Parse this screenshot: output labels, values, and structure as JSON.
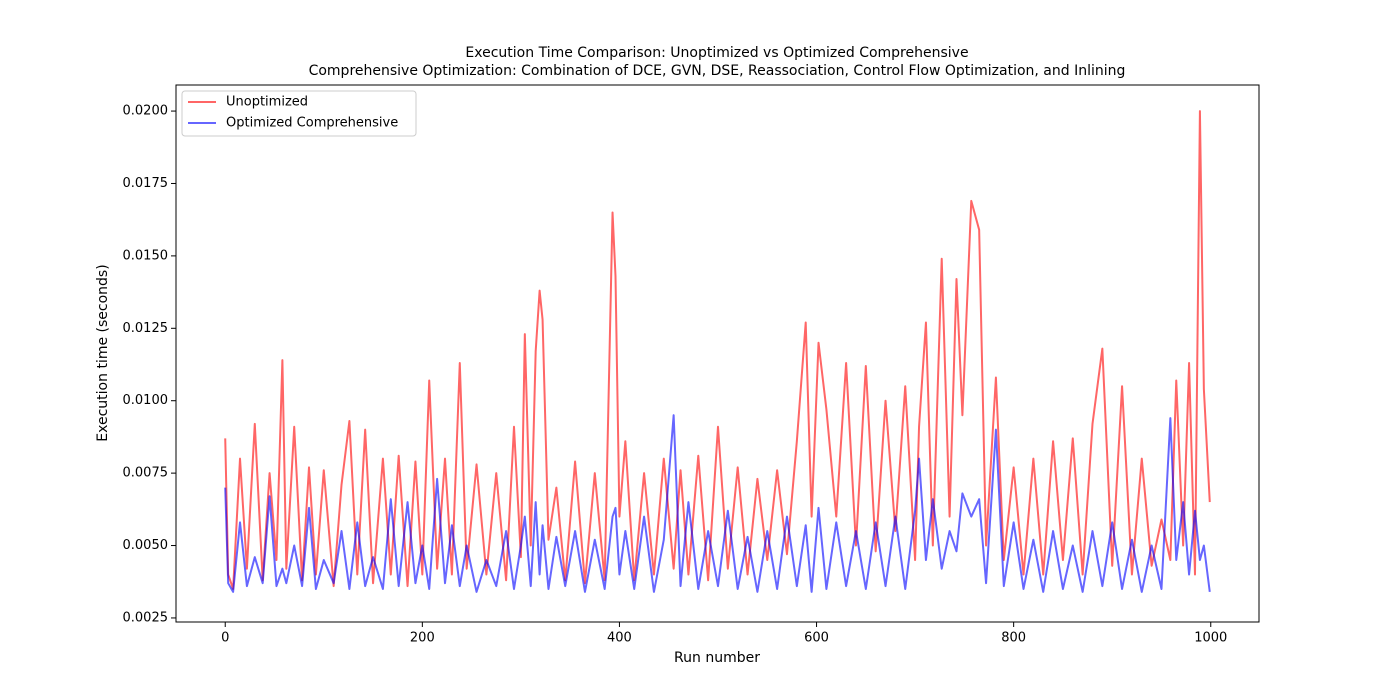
{
  "chart_data": {
    "type": "line",
    "title": "Execution Time Comparison: Unoptimized vs Optimized Comprehensive",
    "subtitle": "Comprehensive Optimization: Combination of DCE, GVN, DSE, Reassociation, Control Flow Optimization, and Inlining",
    "xlabel": "Run number",
    "ylabel": "Execution time (seconds)",
    "xlim": [
      -49.95,
      1048.95
    ],
    "xticks": [
      0,
      200,
      400,
      600,
      800,
      1000
    ],
    "ylim": [
      0.00236,
      0.0209
    ],
    "yticks": [
      0.0025,
      {
        "value": 0.005,
        "label": "0.0050"
      },
      0.0075,
      {
        "value": 0.01,
        "label": "0.0100"
      },
      0.0125,
      {
        "value": 0.015,
        "label": "0.0150"
      },
      0.0175,
      {
        "value": 0.02,
        "label": "0.0200"
      }
    ],
    "legend": "upper left",
    "x": [
      0,
      3,
      8,
      15,
      22,
      30,
      38,
      45,
      52,
      58,
      62,
      70,
      78,
      85,
      92,
      100,
      110,
      118,
      126,
      134,
      142,
      150,
      160,
      168,
      176,
      185,
      193,
      200,
      207,
      215,
      223,
      230,
      238,
      245,
      255,
      265,
      275,
      285,
      293,
      300,
      304,
      310,
      315,
      319,
      322,
      328,
      336,
      345,
      355,
      365,
      375,
      385,
      393,
      396,
      400,
      406,
      415,
      425,
      435,
      445,
      455,
      462,
      470,
      480,
      490,
      500,
      510,
      520,
      530,
      540,
      550,
      560,
      570,
      580,
      589,
      595,
      602,
      610,
      620,
      630,
      640,
      650,
      660,
      670,
      680,
      690,
      700,
      704,
      711,
      718,
      727,
      735,
      742,
      748,
      757,
      765,
      772,
      782,
      790,
      800,
      810,
      820,
      830,
      840,
      850,
      860,
      870,
      880,
      890,
      900,
      910,
      920,
      930,
      940,
      950,
      959,
      965,
      972,
      978,
      984,
      989,
      993,
      999
    ],
    "series": [
      {
        "name": "Unoptimized",
        "color": "#ff0000",
        "values": [
          0.0087,
          0.004,
          0.0035,
          0.008,
          0.0042,
          0.0092,
          0.0038,
          0.0075,
          0.0045,
          0.0114,
          0.0042,
          0.0091,
          0.0038,
          0.0077,
          0.004,
          0.0076,
          0.0036,
          0.0071,
          0.0093,
          0.004,
          0.009,
          0.0037,
          0.008,
          0.004,
          0.0081,
          0.0036,
          0.0079,
          0.004,
          0.0107,
          0.0042,
          0.008,
          0.004,
          0.0113,
          0.0042,
          0.0078,
          0.004,
          0.0075,
          0.0038,
          0.0091,
          0.0046,
          0.0123,
          0.005,
          0.0117,
          0.0138,
          0.0128,
          0.0052,
          0.007,
          0.0038,
          0.0079,
          0.0037,
          0.0075,
          0.0038,
          0.0165,
          0.0143,
          0.006,
          0.0086,
          0.0038,
          0.0075,
          0.004,
          0.008,
          0.0042,
          0.0076,
          0.004,
          0.0081,
          0.0038,
          0.0091,
          0.0042,
          0.0077,
          0.004,
          0.0073,
          0.0045,
          0.0076,
          0.0047,
          0.0086,
          0.0127,
          0.006,
          0.012,
          0.0097,
          0.006,
          0.0113,
          0.005,
          0.0112,
          0.0048,
          0.01,
          0.0055,
          0.0105,
          0.0045,
          0.0091,
          0.0127,
          0.005,
          0.0149,
          0.006,
          0.0142,
          0.0095,
          0.0169,
          0.0159,
          0.005,
          0.0108,
          0.0045,
          0.0077,
          0.004,
          0.008,
          0.004,
          0.0086,
          0.0045,
          0.0087,
          0.004,
          0.0092,
          0.0118,
          0.0043,
          0.0105,
          0.004,
          0.008,
          0.0043,
          0.0059,
          0.0045,
          0.0107,
          0.005,
          0.0113,
          0.004,
          0.02,
          0.0104,
          0.0065
        ]
      },
      {
        "name": "Optimized Comprehensive",
        "color": "#0000ff",
        "values": [
          0.007,
          0.0037,
          0.0034,
          0.0058,
          0.0036,
          0.0046,
          0.0037,
          0.0067,
          0.0036,
          0.0042,
          0.0037,
          0.005,
          0.0036,
          0.0063,
          0.0035,
          0.0045,
          0.0037,
          0.0055,
          0.0035,
          0.0058,
          0.0036,
          0.0046,
          0.0035,
          0.0066,
          0.0036,
          0.0065,
          0.0037,
          0.005,
          0.0035,
          0.0073,
          0.0037,
          0.0057,
          0.0036,
          0.005,
          0.0034,
          0.0045,
          0.0036,
          0.0055,
          0.0035,
          0.005,
          0.006,
          0.0036,
          0.0065,
          0.004,
          0.0057,
          0.0035,
          0.0053,
          0.0036,
          0.0055,
          0.0034,
          0.0052,
          0.0035,
          0.006,
          0.0063,
          0.004,
          0.0055,
          0.0035,
          0.006,
          0.0034,
          0.0052,
          0.0095,
          0.0036,
          0.0065,
          0.0035,
          0.0055,
          0.0036,
          0.0062,
          0.0035,
          0.0053,
          0.0034,
          0.0055,
          0.0035,
          0.006,
          0.0036,
          0.0057,
          0.0034,
          0.0063,
          0.0035,
          0.0058,
          0.0036,
          0.0055,
          0.0035,
          0.0058,
          0.0036,
          0.006,
          0.0035,
          0.0062,
          0.008,
          0.0045,
          0.0066,
          0.0042,
          0.0055,
          0.0048,
          0.0068,
          0.006,
          0.0066,
          0.0037,
          0.009,
          0.0036,
          0.0058,
          0.0035,
          0.0052,
          0.0034,
          0.0055,
          0.0035,
          0.005,
          0.0034,
          0.0055,
          0.0036,
          0.0058,
          0.0035,
          0.0052,
          0.0034,
          0.005,
          0.0035,
          0.0094,
          0.0045,
          0.0065,
          0.004,
          0.0062,
          0.0045,
          0.005,
          0.0034
        ]
      }
    ]
  }
}
